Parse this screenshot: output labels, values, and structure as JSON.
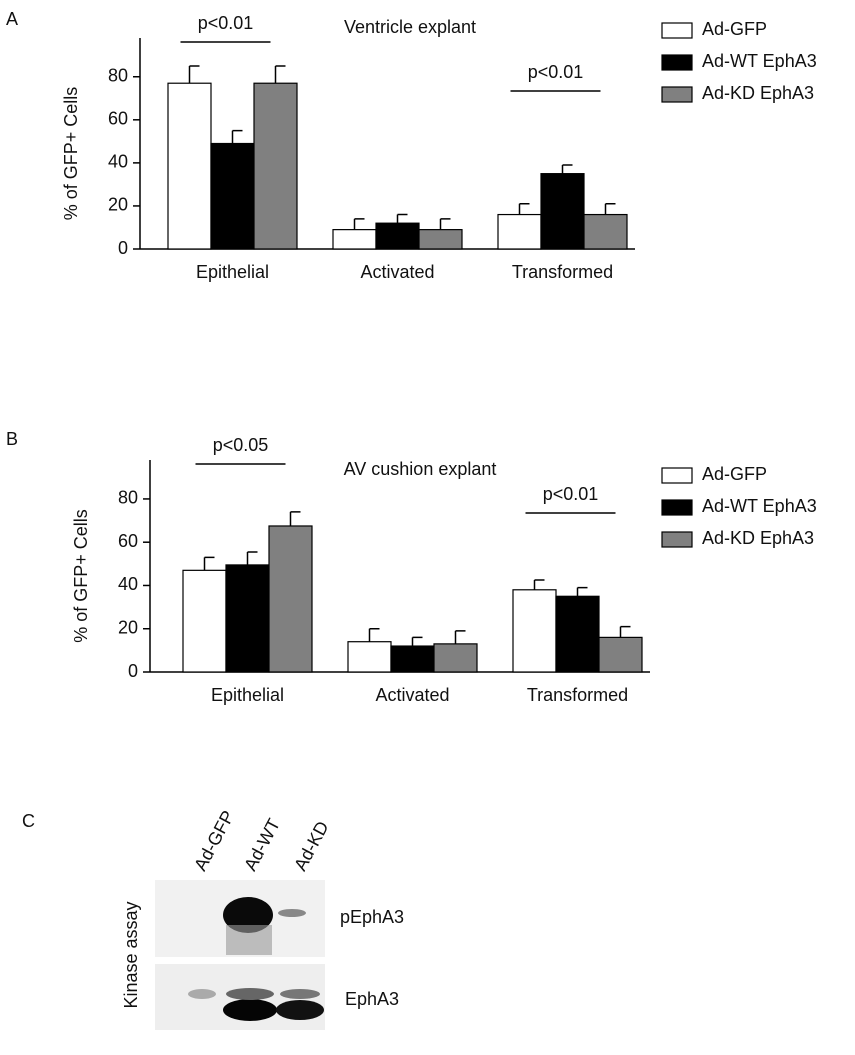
{
  "panel_labels": [
    "A",
    "B",
    "C"
  ],
  "chart_data": [
    {
      "type": "bar",
      "title": "Ventricle explant",
      "y_label": "% of GFP+ Cells",
      "categories": [
        "Epithelial",
        "Activated",
        "Transformed"
      ],
      "annotations": [
        "p<0.01",
        null,
        "p<0.01"
      ],
      "ylim": [
        0,
        98
      ],
      "yticks": [
        0,
        20,
        40,
        60,
        80
      ],
      "series": [
        {
          "name": "Ad-GFP",
          "color": "#ffffff",
          "values": [
            77,
            9,
            16
          ],
          "errors": [
            8,
            5,
            5
          ]
        },
        {
          "name": "Ad-WT EphA3",
          "color": "#000000",
          "values": [
            49,
            12,
            35
          ],
          "errors": [
            6,
            4,
            4
          ]
        },
        {
          "name": "Ad-KD EphA3",
          "color": "#808080",
          "values": [
            77,
            9,
            16
          ],
          "errors": [
            8,
            5,
            5
          ]
        }
      ]
    },
    {
      "type": "bar",
      "title": "AV cushion explant",
      "y_label": "% of GFP+ Cells",
      "categories": [
        "Epithelial",
        "Activated",
        "Transformed"
      ],
      "annotations": [
        "p<0.05",
        null,
        "p<0.01"
      ],
      "ylim": [
        0,
        98
      ],
      "yticks": [
        0,
        20,
        40,
        60,
        80
      ],
      "series": [
        {
          "name": "Ad-GFP",
          "color": "#ffffff",
          "values": [
            47,
            14,
            38
          ],
          "errors": [
            6,
            6,
            4.5
          ]
        },
        {
          "name": "Ad-WT EphA3",
          "color": "#000000",
          "values": [
            49.5,
            12,
            35
          ],
          "errors": [
            6,
            4,
            4
          ]
        },
        {
          "name": "Ad-KD EphA3",
          "color": "#808080",
          "values": [
            67.5,
            13,
            16
          ],
          "errors": [
            6.5,
            6,
            5
          ]
        }
      ]
    }
  ],
  "blot": {
    "lanes": [
      "Ad-GFP",
      "Ad-WT",
      "Ad-KD"
    ],
    "side_label": "Kinase assay",
    "rows": [
      "pEphA3",
      "EphA3"
    ]
  }
}
